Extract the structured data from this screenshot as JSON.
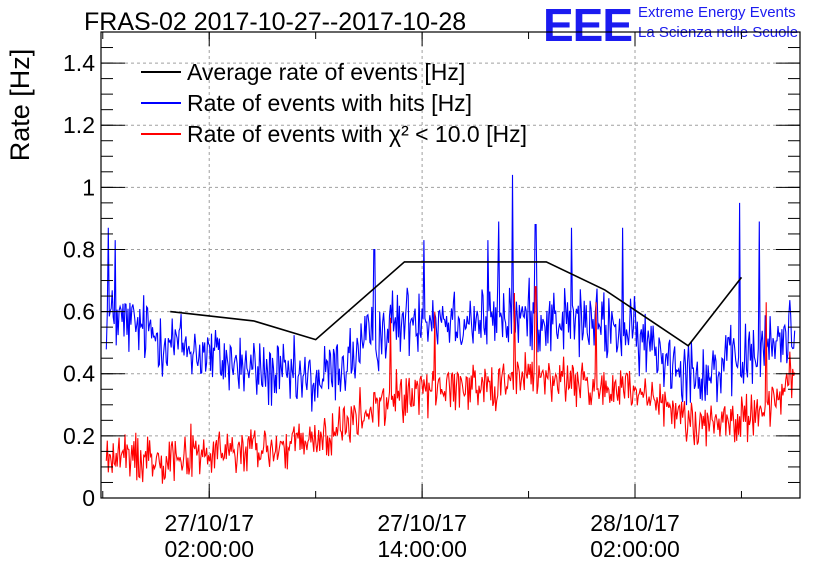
{
  "title": "FRAS-02 2017-10-27--2017-10-28",
  "logo": {
    "text": "EEE",
    "line1": "Extreme Energy Events",
    "line2": "La Scienza nelle Scuole",
    "color": "#1b1bf0"
  },
  "chart_data": {
    "type": "line",
    "ylabel": "Rate [Hz]",
    "xlabel": "",
    "x_unit": "hours since 2017-10-27 00:00:00",
    "xlim": [
      -4.1,
      35.3
    ],
    "ylim": [
      0,
      1.5
    ],
    "yticks": [
      0,
      0.2,
      0.4,
      0.6,
      0.8,
      1,
      1.2,
      1.4
    ],
    "ytick_labels": [
      "0",
      "0.2",
      "0.4",
      "0.6",
      "0.8",
      "1",
      "1.2",
      "1.4"
    ],
    "xticks": [
      {
        "x": 2,
        "line1": "27/10/17",
        "line2": "02:00:00"
      },
      {
        "x": 14,
        "line1": "27/10/17",
        "line2": "14:00:00"
      },
      {
        "x": 26,
        "line1": "28/10/17",
        "line2": "02:00:00"
      }
    ],
    "grid": true,
    "legend_position": "top-left",
    "series": [
      {
        "name": "Average rate of events [Hz]",
        "color": "#000000",
        "x": [
          -0.2,
          4.5,
          8.0,
          13.0,
          16.5,
          21.0,
          24.3,
          29.0,
          32.0
        ],
        "y": [
          0.6,
          0.57,
          0.51,
          0.76,
          0.76,
          0.76,
          0.67,
          0.49,
          0.71
        ]
      },
      {
        "name": "Rate of events with hits [Hz]",
        "color": "#0000ff",
        "profile": {
          "x": [
            -3.8,
            -2,
            0,
            2,
            4,
            6,
            8,
            10,
            12,
            14,
            16,
            18,
            20,
            22,
            24,
            26,
            28,
            30,
            32,
            34,
            35.0
          ],
          "y": [
            0.58,
            0.55,
            0.5,
            0.46,
            0.42,
            0.39,
            0.37,
            0.45,
            0.55,
            0.59,
            0.58,
            0.57,
            0.58,
            0.57,
            0.56,
            0.52,
            0.45,
            0.4,
            0.44,
            0.5,
            0.55
          ]
        },
        "noise_amplitude": 0.085,
        "spikes": [
          [
            -3.7,
            0.87
          ],
          [
            -3.3,
            0.83
          ],
          [
            11.3,
            0.8
          ],
          [
            14.1,
            0.83
          ],
          [
            17.7,
            0.83
          ],
          [
            18.3,
            0.89
          ],
          [
            19.1,
            1.04
          ],
          [
            20.4,
            0.88
          ],
          [
            22.4,
            0.87
          ],
          [
            25.3,
            0.87
          ],
          [
            31.9,
            0.95
          ],
          [
            33.0,
            0.89
          ]
        ]
      },
      {
        "name": "Rate of events with χ² < 10.0 [Hz]",
        "color": "#ff0000",
        "profile": {
          "x": [
            -3.8,
            -2,
            0,
            2,
            4,
            6,
            8,
            10,
            12,
            14,
            16,
            18,
            20,
            22,
            24,
            26,
            28,
            30,
            32,
            34,
            35.0
          ],
          "y": [
            0.13,
            0.13,
            0.14,
            0.14,
            0.15,
            0.16,
            0.18,
            0.24,
            0.31,
            0.35,
            0.36,
            0.37,
            0.39,
            0.38,
            0.36,
            0.33,
            0.28,
            0.24,
            0.25,
            0.33,
            0.4
          ]
        },
        "noise_amplitude": 0.06,
        "spikes": [
          [
            12.2,
            0.58
          ],
          [
            14.7,
            0.6
          ],
          [
            19.2,
            0.66
          ],
          [
            20.4,
            0.68
          ],
          [
            23.8,
            0.63
          ],
          [
            33.4,
            0.63
          ]
        ]
      }
    ]
  }
}
